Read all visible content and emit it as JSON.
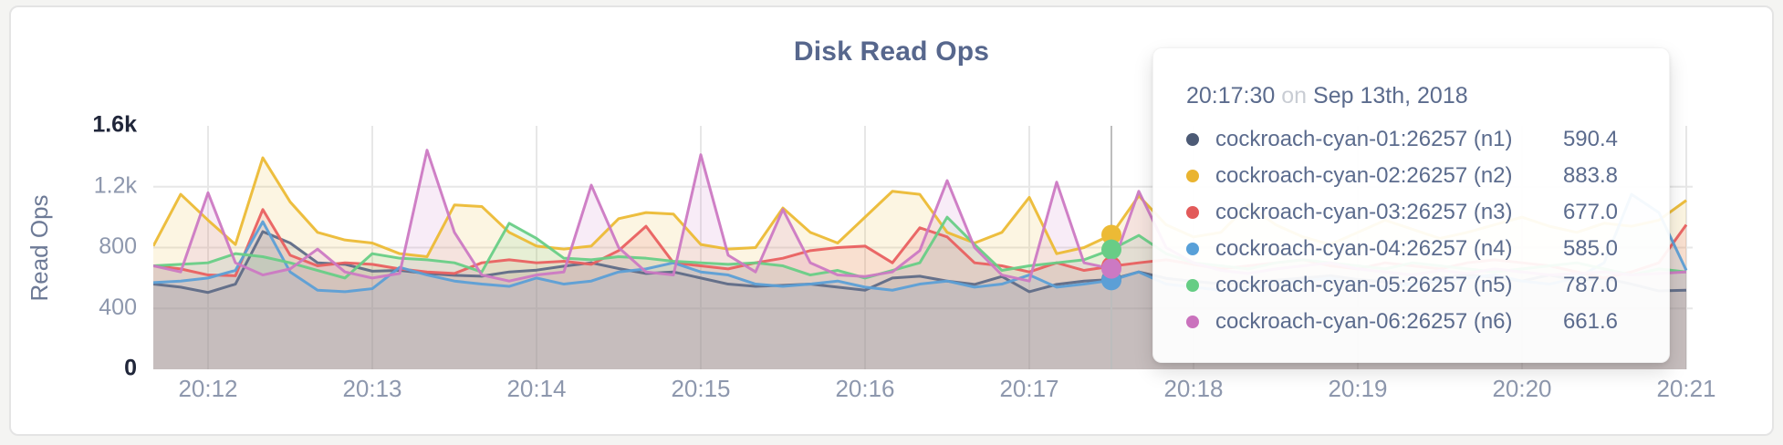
{
  "page": {
    "background": "#f4f4f2"
  },
  "chart_data": {
    "type": "line",
    "title": "Disk Read Ops",
    "ylabel": "Read Ops",
    "ylim": [
      0,
      1600
    ],
    "y_tick_values": [
      0,
      400,
      800,
      1200,
      1600
    ],
    "y_tick_labels": [
      "0",
      "400",
      "800",
      "1.2k",
      "1.6k"
    ],
    "x_ticks": [
      "20:12",
      "20:13",
      "20:14",
      "20:15",
      "20:16",
      "20:17",
      "20:18",
      "20:19",
      "20:20",
      "20:21"
    ],
    "time_start": "20:11:40",
    "interval_seconds": 10,
    "grid": true,
    "legend_position": "tooltip",
    "hover": {
      "index": 35,
      "time": "20:17:30"
    },
    "series": [
      {
        "name": "cockroach-cyan-01:26257 (n1)",
        "color": "#5f6c87",
        "values": [
          560,
          540,
          505,
          560,
          905,
          830,
          700,
          690,
          645,
          650,
          630,
          618,
          612,
          640,
          652,
          678,
          700,
          662,
          630,
          640,
          600,
          560,
          545,
          552,
          560,
          540,
          520,
          600,
          612,
          580,
          558,
          610,
          510,
          558,
          580,
          590.4,
          640,
          598,
          578,
          562,
          570,
          585,
          600,
          615,
          590,
          575,
          560,
          600,
          620,
          605,
          580,
          620,
          585,
          600,
          560,
          515,
          520
        ]
      },
      {
        "name": "cockroach-cyan-02:26257 (n2)",
        "color": "#ecba35",
        "values": [
          810,
          1150,
          980,
          820,
          1390,
          1100,
          900,
          850,
          830,
          760,
          740,
          1080,
          1070,
          900,
          810,
          790,
          810,
          990,
          1030,
          1020,
          820,
          790,
          800,
          1060,
          900,
          830,
          1000,
          1170,
          1150,
          900,
          830,
          900,
          1130,
          760,
          800,
          883.8,
          1140,
          950,
          870,
          900,
          1080,
          950,
          870,
          820,
          900,
          980,
          920,
          860,
          900,
          950,
          1000,
          940,
          900,
          960,
          940,
          980,
          1110
        ]
      },
      {
        "name": "cockroach-cyan-03:26257 (n3)",
        "color": "#e96060",
        "values": [
          680,
          660,
          620,
          615,
          1050,
          750,
          680,
          700,
          690,
          660,
          640,
          630,
          700,
          720,
          700,
          710,
          690,
          780,
          940,
          700,
          680,
          660,
          700,
          730,
          780,
          800,
          810,
          700,
          930,
          870,
          700,
          680,
          640,
          700,
          650,
          677.0,
          700,
          720,
          690,
          660,
          680,
          700,
          720,
          680,
          660,
          700,
          680,
          660,
          700,
          720,
          700,
          680,
          640,
          600,
          640,
          700,
          950
        ]
      },
      {
        "name": "cockroach-cyan-04:26257 (n4)",
        "color": "#5c9fd6",
        "values": [
          570,
          580,
          600,
          650,
          970,
          640,
          520,
          510,
          530,
          670,
          620,
          580,
          560,
          545,
          600,
          560,
          580,
          640,
          660,
          700,
          640,
          620,
          560,
          545,
          560,
          580,
          540,
          520,
          560,
          580,
          540,
          560,
          620,
          540,
          560,
          585.0,
          640,
          560,
          540,
          520,
          540,
          560,
          580,
          600,
          560,
          540,
          560,
          580,
          600,
          620,
          580,
          560,
          600,
          700,
          1150,
          1030,
          650
        ]
      },
      {
        "name": "cockroach-cyan-05:26257 (n5)",
        "color": "#68cd86",
        "values": [
          680,
          690,
          700,
          760,
          740,
          700,
          650,
          600,
          760,
          730,
          720,
          700,
          640,
          960,
          860,
          730,
          720,
          740,
          730,
          710,
          700,
          690,
          700,
          680,
          620,
          650,
          600,
          650,
          700,
          1000,
          820,
          650,
          680,
          700,
          720,
          787.0,
          880,
          760,
          700,
          680,
          660,
          700,
          720,
          700,
          680,
          660,
          700,
          680,
          660,
          640,
          660,
          680,
          700,
          660,
          620,
          660,
          640
        ]
      },
      {
        "name": "cockroach-cyan-06:26257 (n6)",
        "color": "#cc79c3",
        "values": [
          680,
          640,
          1160,
          700,
          620,
          660,
          790,
          640,
          600,
          630,
          1440,
          900,
          620,
          580,
          620,
          640,
          1210,
          800,
          640,
          620,
          1410,
          750,
          640,
          1050,
          700,
          620,
          610,
          640,
          780,
          1240,
          800,
          620,
          580,
          1230,
          700,
          661.6,
          1170,
          800,
          700,
          650,
          630,
          660,
          680,
          700,
          660,
          640,
          620,
          650,
          630,
          660,
          640,
          620,
          630,
          640,
          620,
          630,
          640
        ]
      }
    ]
  },
  "tooltip": {
    "time": "20:17:30",
    "conjunction": "on",
    "date": "Sep 13th, 2018",
    "rows": [
      {
        "label": "cockroach-cyan-01:26257 (n1)",
        "value": "590.4",
        "color": "#4c5a75"
      },
      {
        "label": "cockroach-cyan-02:26257 (n2)",
        "value": "883.8",
        "color": "#eab430"
      },
      {
        "label": "cockroach-cyan-03:26257 (n3)",
        "value": "677.0",
        "color": "#e25a5a"
      },
      {
        "label": "cockroach-cyan-04:26257 (n4)",
        "value": "585.0",
        "color": "#58a0d8"
      },
      {
        "label": "cockroach-cyan-05:26257 (n5)",
        "value": "787.0",
        "color": "#65cd84"
      },
      {
        "label": "cockroach-cyan-06:26257 (n6)",
        "value": "661.6",
        "color": "#ca72bd"
      }
    ]
  },
  "style": {
    "grid_color": "#e7e7e7",
    "hover_line_color": "#bdbdbd",
    "fill_opacity": 0.14
  }
}
